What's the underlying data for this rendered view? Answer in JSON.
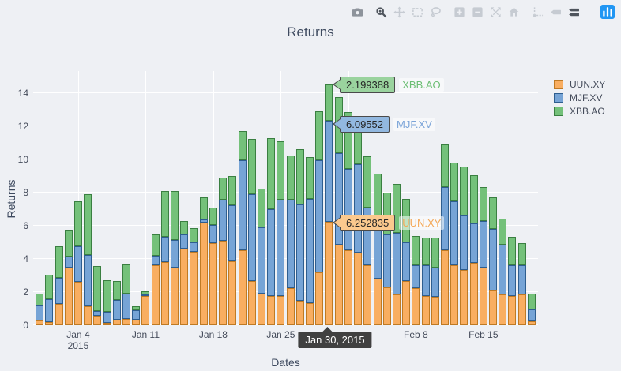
{
  "title": "Returns",
  "axes": {
    "x_label": "Dates",
    "y_label": "Returns",
    "y_ticks": [
      0,
      2,
      4,
      6,
      8,
      10,
      12,
      14
    ],
    "x_ticks": [
      {
        "label": "Jan 4",
        "sub": "2015",
        "index": 4
      },
      {
        "label": "Jan 11",
        "index": 11
      },
      {
        "label": "Jan 18",
        "index": 18
      },
      {
        "label": "Jan 25",
        "index": 25
      },
      {
        "label": "Feb 8",
        "index": 39
      },
      {
        "label": "Feb 15",
        "index": 46
      }
    ],
    "x_gridline_indices": [
      4,
      11,
      18,
      25,
      32,
      39,
      46
    ]
  },
  "legend": [
    {
      "label": "UUN.XY",
      "fill": "#F9AE61",
      "border": "#BF7A24"
    },
    {
      "label": "MJF.XV",
      "fill": "#76A4D6",
      "border": "#2E5E8F"
    },
    {
      "label": "XBB.AO",
      "fill": "#74C17A",
      "border": "#3A7F41"
    }
  ],
  "modebar": [
    {
      "name": "camera",
      "tone": "medium",
      "group": 1
    },
    {
      "name": "zoom",
      "tone": "dark",
      "group": 2
    },
    {
      "name": "pan",
      "tone": "light",
      "group": 2
    },
    {
      "name": "box-select",
      "tone": "light",
      "group": 2
    },
    {
      "name": "lasso",
      "tone": "light",
      "group": 2
    },
    {
      "name": "zoom-in",
      "tone": "light",
      "group": 3
    },
    {
      "name": "zoom-out",
      "tone": "light",
      "group": 3
    },
    {
      "name": "autoscale",
      "tone": "light",
      "group": 3
    },
    {
      "name": "reset-axes",
      "tone": "light",
      "group": 3
    },
    {
      "name": "toggle-spikelines",
      "tone": "light",
      "group": 4
    },
    {
      "name": "hover-closest",
      "tone": "light",
      "group": 4
    },
    {
      "name": "hover-compare",
      "tone": "dark",
      "group": 4
    },
    {
      "name": "plotly-logo",
      "tone": "logo",
      "group": 5
    }
  ],
  "hover": {
    "bar_index": 30,
    "bar_date": "2015-01-30",
    "date_label": "Jan 30, 2015",
    "points": [
      {
        "series": "XBB.AO",
        "value": "2.199388"
      },
      {
        "series": "MJF.XV",
        "value": "6.09552"
      },
      {
        "series": "UUN.XY",
        "value": "6.252835"
      }
    ]
  },
  "chart_data": {
    "type": "bar",
    "stacked": true,
    "title": "Returns",
    "xlabel": "Dates",
    "ylabel": "Returns",
    "ylim": [
      0,
      15.33
    ],
    "grid": true,
    "legend_position": "right",
    "x": [
      "2014-12-31",
      "2015-01-01",
      "2015-01-02",
      "2015-01-03",
      "2015-01-04",
      "2015-01-05",
      "2015-01-06",
      "2015-01-07",
      "2015-01-08",
      "2015-01-09",
      "2015-01-10",
      "2015-01-11",
      "2015-01-12",
      "2015-01-13",
      "2015-01-14",
      "2015-01-15",
      "2015-01-16",
      "2015-01-17",
      "2015-01-18",
      "2015-01-19",
      "2015-01-20",
      "2015-01-21",
      "2015-01-22",
      "2015-01-23",
      "2015-01-24",
      "2015-01-25",
      "2015-01-26",
      "2015-01-27",
      "2015-01-28",
      "2015-01-29",
      "2015-01-30",
      "2015-01-31",
      "2015-02-01",
      "2015-02-02",
      "2015-02-03",
      "2015-02-04",
      "2015-02-05",
      "2015-02-06",
      "2015-02-07",
      "2015-02-08",
      "2015-02-09",
      "2015-02-10",
      "2015-02-11",
      "2015-02-12",
      "2015-02-13",
      "2015-02-14",
      "2015-02-15",
      "2015-02-16",
      "2015-02-17",
      "2015-02-18",
      "2015-02-19",
      "2015-02-20"
    ],
    "series": [
      {
        "name": "UUN.XY",
        "color": "#F9AE61",
        "values": [
          0.3,
          0.2,
          1.3,
          3.5,
          2.6,
          1.15,
          0.55,
          0.15,
          0.35,
          0.4,
          0.35,
          1.75,
          3.6,
          3.8,
          3.5,
          4.6,
          4.45,
          6.2,
          4.95,
          5.1,
          3.85,
          4.55,
          2.65,
          1.9,
          1.75,
          1.75,
          2.25,
          1.5,
          1.35,
          3.2,
          6.252835,
          4.85,
          4.55,
          4.4,
          3.6,
          2.8,
          2.3,
          1.85,
          2.65,
          2.25,
          1.75,
          1.7,
          4.55,
          3.6,
          3.35,
          3.75,
          3.5,
          2.1,
          1.85,
          1.75,
          1.85,
          0.25
        ]
      },
      {
        "name": "MJF.XV",
        "color": "#76A4D6",
        "values": [
          0.9,
          1.35,
          1.55,
          0.65,
          2.15,
          3.1,
          0.3,
          0.65,
          1.2,
          1.5,
          0.55,
          0.1,
          0.6,
          1.55,
          1.65,
          0.9,
          0.55,
          0.2,
          1.1,
          2.45,
          3.4,
          5.4,
          5.25,
          4.0,
          5.25,
          5.8,
          5.3,
          5.8,
          6.25,
          6.75,
          6.09552,
          5.55,
          4.9,
          5.3,
          3.5,
          3.2,
          3.2,
          3.7,
          2.35,
          1.35,
          1.85,
          1.8,
          3.8,
          3.9,
          3.25,
          2.4,
          2.8,
          3.7,
          3.0,
          1.85,
          1.75,
          0.7
        ]
      },
      {
        "name": "XBB.AO",
        "color": "#74C17A",
        "values": [
          0.7,
          1.5,
          1.9,
          1.55,
          2.75,
          3.65,
          2.7,
          1.9,
          1.1,
          1.75,
          0.25,
          0.2,
          1.3,
          2.75,
          2.95,
          0.8,
          0.85,
          1.3,
          1.05,
          1.35,
          1.75,
          1.75,
          3.35,
          2.35,
          4.3,
          3.55,
          2.7,
          3.3,
          2.55,
          2.95,
          2.199388,
          3.35,
          3.4,
          2.05,
          3.1,
          3.15,
          2.5,
          2.95,
          2.6,
          1.8,
          1.7,
          1.8,
          2.55,
          2.3,
          2.95,
          2.9,
          2.05,
          1.9,
          1.6,
          1.75,
          1.35,
          0.95
        ]
      }
    ]
  }
}
